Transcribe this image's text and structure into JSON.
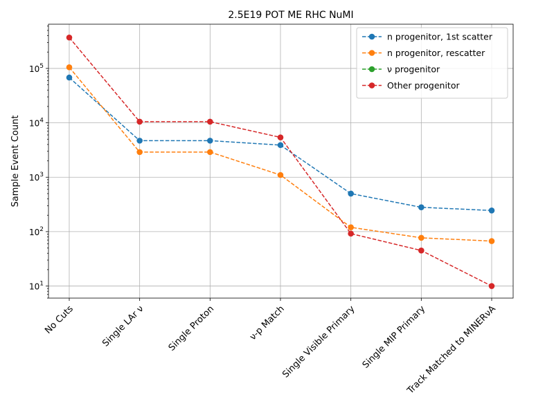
{
  "chart_data": {
    "type": "line",
    "title": "2.5E19 POT ME RHC NuMI",
    "ylabel": "Sample Event Count",
    "xlabel": "",
    "yscale": "log",
    "ylim": [
      6,
      650000
    ],
    "grid": true,
    "legend_position": "top-right",
    "categories": [
      "No Cuts",
      "Single LAr ν",
      "Single Proton",
      "ν-p Match",
      "Single Visible Primary",
      "Single MIP Primary",
      "Track Matched to MINERνA"
    ],
    "y_tick_labels": [
      {
        "value": 10,
        "base": "10",
        "exp": "1"
      },
      {
        "value": 100,
        "base": "10",
        "exp": "2"
      },
      {
        "value": 1000,
        "base": "10",
        "exp": "3"
      },
      {
        "value": 10000,
        "base": "10",
        "exp": "4"
      },
      {
        "value": 100000,
        "base": "10",
        "exp": "5"
      }
    ],
    "series": [
      {
        "name": "n progenitor, 1st scatter",
        "color": "#1f77b4",
        "values": [
          68000,
          4700,
          4700,
          3900,
          500,
          280,
          245
        ]
      },
      {
        "name": "n progenitor, rescatter",
        "color": "#ff7f0e",
        "values": [
          105000,
          2900,
          2900,
          1100,
          120,
          77,
          67
        ]
      },
      {
        "name": "ν progenitor",
        "color": "#2ca02c",
        "values": [
          null,
          null,
          null,
          null,
          null,
          null,
          null
        ]
      },
      {
        "name": "Other progenitor",
        "color": "#d62728",
        "values": [
          370000,
          10500,
          10500,
          5400,
          92,
          45,
          10
        ]
      }
    ]
  }
}
